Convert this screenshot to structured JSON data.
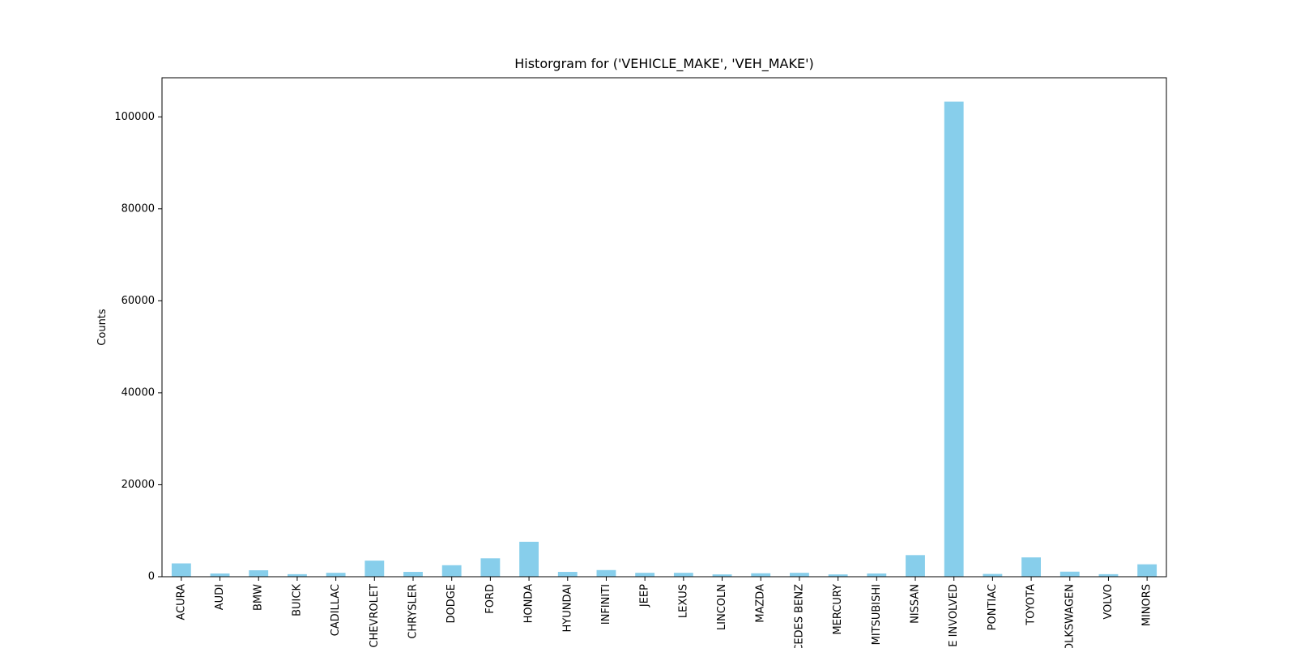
{
  "chart_data": {
    "type": "bar",
    "title": "Historgram for ('VEHICLE_MAKE', 'VEH_MAKE')",
    "xlabel": "",
    "ylabel": "Counts",
    "ylim": [
      0,
      108500
    ],
    "yticks": [
      0,
      20000,
      40000,
      60000,
      80000,
      100000
    ],
    "ytick_labels": [
      "0",
      "20000",
      "40000",
      "60000",
      "80000",
      "100000"
    ],
    "grid": false,
    "bar_color": "#87ceeb",
    "categories": [
      "ACURA",
      "AUDI",
      "BMW",
      "BUICK",
      "CADILLAC",
      "CHEVROLET",
      "CHRYSLER",
      "DODGE",
      "FORD",
      "HONDA",
      "HYUNDAI",
      "INFINITI",
      "JEEP",
      "LEXUS",
      "LINCOLN",
      "MAZDA",
      "MERCEDES BENZ",
      "MERCURY",
      "MITSUBISHI",
      "NISSAN",
      "NONE INVOLVED",
      "PONTIAC",
      "TOYOTA",
      "VOLKSWAGEN",
      "VOLVO",
      "MINORS"
    ],
    "values": [
      2900,
      700,
      1400,
      550,
      850,
      3500,
      1050,
      2500,
      4000,
      7600,
      1050,
      1450,
      850,
      850,
      500,
      750,
      850,
      500,
      700,
      4700,
      103300,
      600,
      4200,
      1100,
      550,
      2700
    ]
  }
}
